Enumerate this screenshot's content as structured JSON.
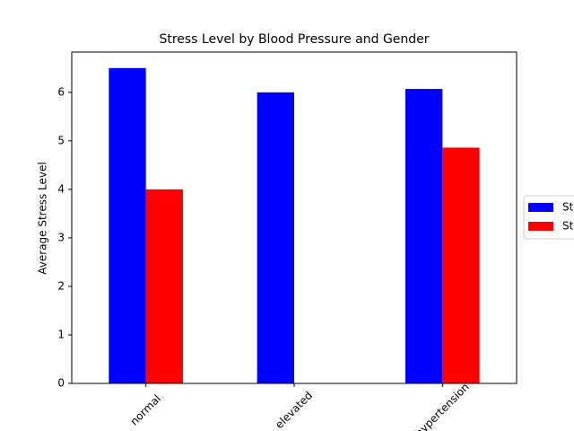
{
  "chart_data": {
    "type": "bar",
    "title": "Stress Level by Blood Pressure and Gender",
    "y_label": "Average Stress Level",
    "categories": [
      "normal",
      "elevated",
      "hypertension"
    ],
    "series": [
      {
        "name": "St",
        "color": "#0000ff",
        "values": [
          6.5,
          6.0,
          6.07
        ]
      },
      {
        "name": "St",
        "color": "#ff0000",
        "values": [
          4.0,
          null,
          4.86
        ]
      }
    ],
    "ylim": [
      0,
      6.83
    ],
    "yticks": [
      0,
      1,
      2,
      3,
      4,
      5,
      6
    ],
    "legend": "right"
  }
}
